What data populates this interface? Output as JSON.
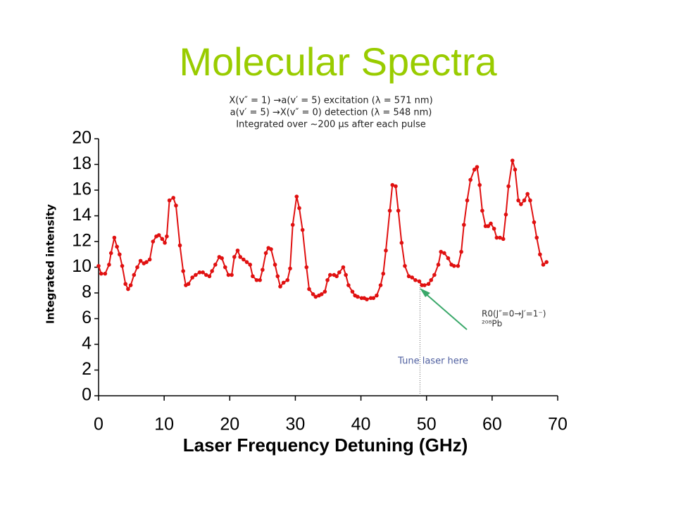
{
  "chart_data": {
    "type": "line",
    "title": "Molecular Spectra",
    "subtitle": [
      "X(v″ = 1) →a(v′ = 5) excitation (λ = 571 nm)",
      "a(v′ = 5) →X(v″ = 0) detection  (λ = 548 nm)",
      "Integrated over ~200 μs after each pulse"
    ],
    "x_label": "Laser Frequency Detuning (GHz)",
    "y_label": "Integrated intensity",
    "xlim": [
      0,
      70
    ],
    "xticks": [
      0,
      10,
      20,
      30,
      40,
      50,
      60,
      70
    ],
    "ylim": [
      0,
      20
    ],
    "yticks": [
      0,
      2,
      4,
      6,
      8,
      10,
      12,
      14,
      16,
      18,
      20
    ],
    "grid": false,
    "x": [
      0,
      0.4,
      1,
      1.6,
      1.9,
      2.4,
      2.8,
      3.2,
      3.6,
      4.1,
      4.5,
      4.9,
      5.4,
      5.9,
      6.4,
      6.9,
      7.3,
      7.8,
      8.3,
      8.8,
      9.2,
      9.7,
      10.1,
      10.4,
      10.8,
      11.4,
      11.8,
      12.4,
      12.9,
      13.3,
      13.7,
      14.3,
      14.8,
      15.4,
      15.9,
      16.4,
      16.9,
      17.3,
      17.8,
      18.4,
      18.8,
      19.3,
      19.8,
      20.3,
      20.7,
      21.2,
      21.6,
      22.1,
      22.6,
      23.1,
      23.5,
      24.1,
      24.6,
      25,
      25.5,
      25.9,
      26.3,
      26.9,
      27.3,
      27.7,
      28.2,
      28.8,
      29.2,
      29.6,
      30.2,
      30.6,
      31.1,
      31.7,
      32.1,
      32.7,
      33.1,
      33.6,
      34,
      34.5,
      34.9,
      35.3,
      35.9,
      36.3,
      36.7,
      37.3,
      37.7,
      38.1,
      38.7,
      39.1,
      39.5,
      40.1,
      40.5,
      40.9,
      41.5,
      41.9,
      42.4,
      43,
      43.4,
      43.8,
      44.4,
      44.8,
      45.3,
      45.7,
      46.2,
      46.7,
      47.3,
      47.8,
      48.3,
      48.9,
      49.3,
      49.7,
      50.3,
      50.7,
      51.2,
      51.8,
      52.2,
      52.7,
      53.3,
      53.8,
      54.2,
      54.8,
      55.3,
      55.7,
      56.2,
      56.7,
      57.3,
      57.7,
      58.1,
      58.5,
      59,
      59.4,
      59.8,
      60.3,
      60.7,
      61.2,
      61.7,
      62.1,
      62.5,
      63.1,
      63.5,
      64,
      64.4,
      64.9,
      65.4,
      65.8,
      66.4,
      66.8,
      67.3,
      67.8,
      68.3
    ],
    "series": [
      {
        "color": "#e01010",
        "values": [
          10.1,
          9.5,
          9.5,
          10.2,
          11.1,
          12.3,
          11.6,
          11,
          10.1,
          8.7,
          8.3,
          8.6,
          9.4,
          10,
          10.5,
          10.3,
          10.4,
          10.6,
          12,
          12.4,
          12.5,
          12.2,
          11.9,
          12.4,
          15.2,
          15.4,
          14.8,
          11.7,
          9.7,
          8.6,
          8.7,
          9.2,
          9.4,
          9.6,
          9.6,
          9.4,
          9.3,
          9.7,
          10.2,
          10.8,
          10.7,
          10,
          9.4,
          9.4,
          10.8,
          11.3,
          10.8,
          10.6,
          10.4,
          10.2,
          9.3,
          9,
          9,
          9.8,
          11.1,
          11.5,
          11.4,
          10.2,
          9.3,
          8.5,
          8.8,
          9,
          9.9,
          13.3,
          15.5,
          14.6,
          12.9,
          10,
          8.3,
          7.9,
          7.7,
          7.8,
          7.9,
          8.1,
          9,
          9.4,
          9.4,
          9.3,
          9.6,
          10,
          9.4,
          8.6,
          8.1,
          7.8,
          7.7,
          7.6,
          7.6,
          7.5,
          7.6,
          7.6,
          7.8,
          8.6,
          9.5,
          11.3,
          14.4,
          16.4,
          16.3,
          14.4,
          11.9,
          10.1,
          9.3,
          9.2,
          9,
          8.9,
          8.6,
          8.6,
          8.7,
          9,
          9.4,
          10.2,
          11.2,
          11.1,
          10.7,
          10.2,
          10.1,
          10.1,
          11.2,
          13.3,
          15.2,
          16.8,
          17.6,
          17.8,
          16.4,
          14.4,
          13.2,
          13.2,
          13.4,
          13,
          12.3,
          12.3,
          12.2,
          14.1,
          16.3,
          18.3,
          17.6,
          15.2,
          14.9,
          15.2,
          15.7,
          15.2,
          13.5,
          12.3,
          11,
          10.2,
          10.4
        ]
      }
    ],
    "annotations": [
      {
        "text": "Tune laser here",
        "x": 49
      },
      {
        "text": "R0(J″=0→J′=1⁻)"
      },
      {
        "text": "²⁰⁸Pb"
      }
    ]
  }
}
